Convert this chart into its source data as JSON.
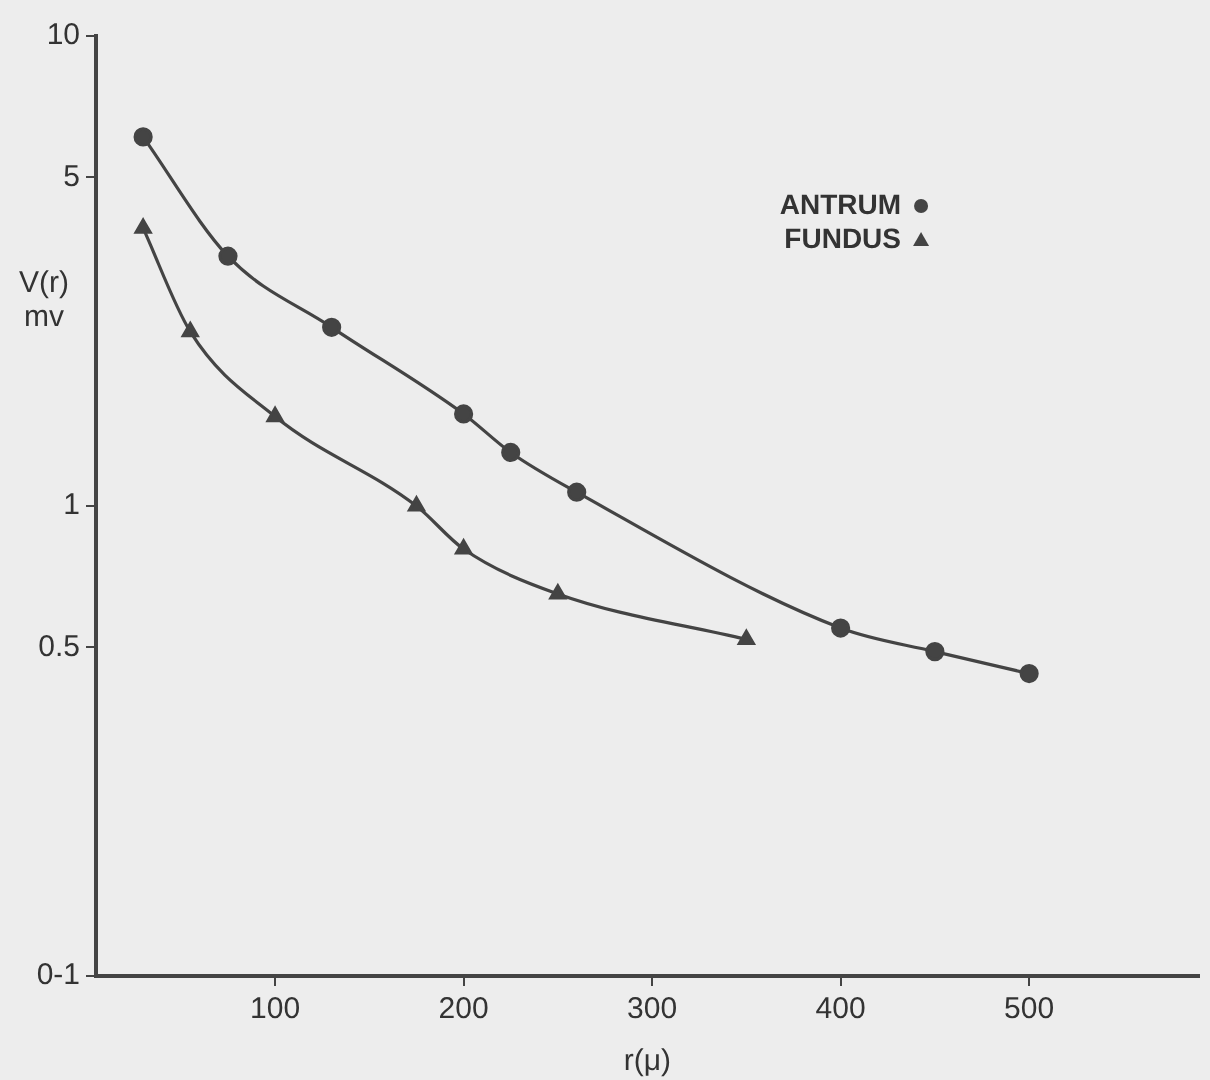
{
  "chart_data": {
    "type": "line",
    "xlabel": "r(μ)",
    "ylabel": "V(r)\nmv",
    "log": "y",
    "xlim": [
      5,
      590
    ],
    "xticks": [
      100,
      200,
      300,
      400,
      500
    ],
    "ylim": [
      0.1,
      10
    ],
    "yticks": [
      {
        "value": 0.1,
        "label": "0-1"
      },
      0.5,
      1,
      5,
      10
    ],
    "grid": false,
    "legend": "top right",
    "tick_labels": "xy",
    "series": [
      {
        "name": "ANTRUM",
        "color": "#444444",
        "marker": "circle",
        "x": [
          30,
          75,
          130,
          200,
          225,
          260,
          400,
          450,
          500
        ],
        "values": [
          6.1,
          3.4,
          2.4,
          1.57,
          1.3,
          1.07,
          0.55,
          0.49,
          0.44
        ]
      },
      {
        "name": "FUNDUS",
        "color": "#444444",
        "marker": "triangle",
        "x": [
          30,
          55,
          100,
          175,
          200,
          250,
          350
        ],
        "values": [
          3.9,
          2.35,
          1.55,
          1.0,
          0.81,
          0.65,
          0.52
        ]
      }
    ]
  }
}
